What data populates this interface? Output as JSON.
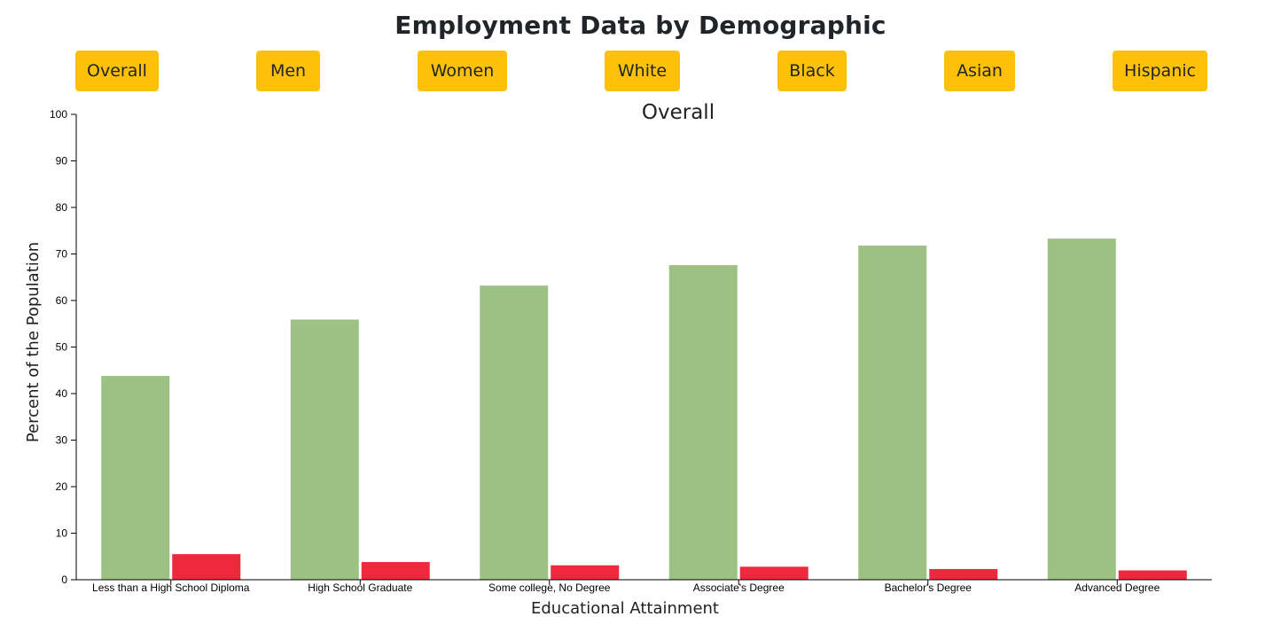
{
  "header": {
    "title": "Employment Data by Demographic"
  },
  "filters": [
    {
      "label": "Overall",
      "id": "overall"
    },
    {
      "label": "Men",
      "id": "men"
    },
    {
      "label": "Women",
      "id": "women"
    },
    {
      "label": "White",
      "id": "white"
    },
    {
      "label": "Black",
      "id": "black"
    },
    {
      "label": "Asian",
      "id": "asian"
    },
    {
      "label": "Hispanic",
      "id": "hispanic"
    }
  ],
  "colors": {
    "button": "#ffc107",
    "employed": "#9dc183",
    "unemployed": "#ee293d",
    "axis": "#000000"
  },
  "chart_data": {
    "type": "bar",
    "title": "Overall",
    "xlabel": "Educational Attainment",
    "ylabel": "Percent of the Population",
    "ylim": [
      0,
      100
    ],
    "yticks": [
      0,
      10,
      20,
      30,
      40,
      50,
      60,
      70,
      80,
      90,
      100
    ],
    "categories": [
      "Less than a High School Diploma",
      "High School Graduate",
      "Some college, No Degree",
      "Associate's Degree",
      "Bachelor's Degree",
      "Advanced Degree"
    ],
    "series": [
      {
        "color": "#9dc183",
        "values": [
          43.8,
          55.9,
          63.2,
          67.6,
          71.8,
          73.3
        ]
      },
      {
        "color": "#ee293d",
        "values": [
          5.5,
          3.8,
          3.1,
          2.8,
          2.3,
          2.0
        ]
      }
    ],
    "grid": false,
    "legend": "none"
  }
}
